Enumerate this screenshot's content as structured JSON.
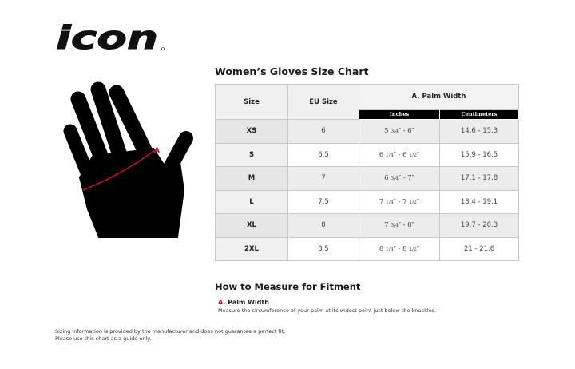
{
  "logo": {
    "text": "icon"
  },
  "diagram": {
    "marker_label": "A",
    "accent_color": "#c8102e"
  },
  "chart": {
    "title": "Women’s Gloves Size Chart",
    "headers": {
      "size": "Size",
      "eu": "EU Size",
      "palm": "A. Palm Width",
      "inches": "Inches",
      "cm": "Centimeters"
    },
    "rows": [
      {
        "size": "XS",
        "eu": "6",
        "in_a": "5",
        "in_af": "3/4",
        "in_b": "″ - 6″",
        "in_bf": "",
        "cm": "14.6 - 15.3"
      },
      {
        "size": "S",
        "eu": "6.5",
        "in_a": "6",
        "in_af": "1/4",
        "in_b": "″ - 6",
        "in_bf": "1/2",
        "cm": "15.9 - 16.5"
      },
      {
        "size": "M",
        "eu": "7",
        "in_a": "6",
        "in_af": "3/4",
        "in_b": "″ - 7″",
        "in_bf": "",
        "cm": "17.1 - 17.8"
      },
      {
        "size": "L",
        "eu": "7.5",
        "in_a": "7",
        "in_af": "1/4",
        "in_b": "″ - 7",
        "in_bf": "1/2",
        "cm": "18.4 - 19.1"
      },
      {
        "size": "XL",
        "eu": "8",
        "in_a": "7",
        "in_af": "3/4",
        "in_b": "″ - 8″",
        "in_bf": "",
        "cm": "19.7 - 20.3"
      },
      {
        "size": "2XL",
        "eu": "8.5",
        "in_a": "8",
        "in_af": "1/4",
        "in_b": "″ - 8",
        "in_bf": "1/2",
        "cm": "21 - 21.6"
      }
    ]
  },
  "howto": {
    "title": "How to Measure for Fitment",
    "letter": "A.",
    "label": "Palm Width",
    "desc": "Measure the circumference of your palm at its widest point just below the knuckles."
  },
  "disclaimer": {
    "line1": "Sizing information is provided by the manufacturer and does not guarantee a perfect fit.",
    "line2": "Please use this chart as a guide only."
  }
}
